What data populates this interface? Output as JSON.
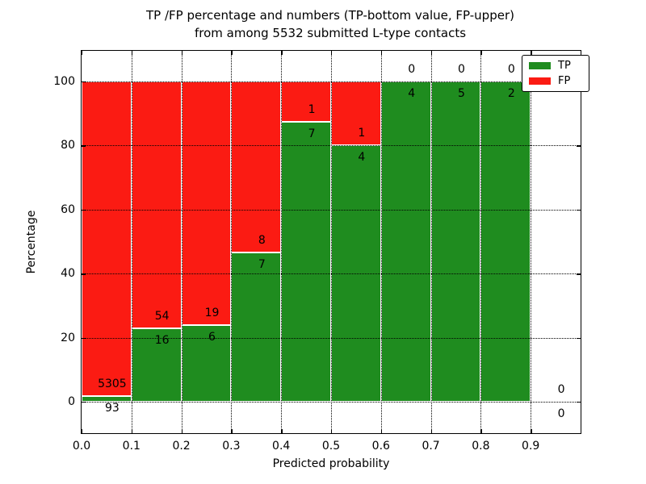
{
  "figure": {
    "title_line1": "TP /FP percentage and numbers (TP-bottom value, FP-upper)",
    "title_line2": "from among 5532 submitted L-type contacts"
  },
  "chart_data": {
    "type": "bar",
    "stacked": true,
    "normalized": "each bar scaled to 100%, stacked TP (bottom) + FP (top); counts shown as labels at segment boundary",
    "title": "TP /FP percentage and numbers (TP-bottom value, FP-upper) from among 5532 submitted L-type contacts",
    "xlabel": "Predicted probability",
    "ylabel": "Percentage",
    "xlim": [
      0.0,
      1.0
    ],
    "ylim": [
      -10,
      109
    ],
    "xticks": [
      "0.0",
      "0.1",
      "0.2",
      "0.3",
      "0.4",
      "0.5",
      "0.6",
      "0.7",
      "0.8",
      "0.9"
    ],
    "yticks": [
      "0",
      "20",
      "40",
      "60",
      "80",
      "100"
    ],
    "grid": "dotted",
    "legend": {
      "position": "upper right",
      "entries": [
        {
          "label": "TP",
          "color": "#1f8c1f"
        },
        {
          "label": "FP",
          "color": "#fb1b13"
        }
      ]
    },
    "bins": [
      {
        "x_start": 0.0,
        "x_end": 0.1,
        "tp": 93,
        "fp": 5305
      },
      {
        "x_start": 0.1,
        "x_end": 0.2,
        "tp": 16,
        "fp": 54
      },
      {
        "x_start": 0.2,
        "x_end": 0.3,
        "tp": 6,
        "fp": 19
      },
      {
        "x_start": 0.3,
        "x_end": 0.4,
        "tp": 7,
        "fp": 8
      },
      {
        "x_start": 0.4,
        "x_end": 0.5,
        "tp": 7,
        "fp": 1
      },
      {
        "x_start": 0.5,
        "x_end": 0.6,
        "tp": 4,
        "fp": 1
      },
      {
        "x_start": 0.6,
        "x_end": 0.7,
        "tp": 4,
        "fp": 0
      },
      {
        "x_start": 0.7,
        "x_end": 0.8,
        "tp": 5,
        "fp": 0
      },
      {
        "x_start": 0.8,
        "x_end": 0.9,
        "tp": 2,
        "fp": 0
      },
      {
        "x_start": 0.9,
        "x_end": 1.0,
        "tp": 0,
        "fp": 0
      }
    ],
    "colors": {
      "tp": "#1f8c1f",
      "fp": "#fb1b13",
      "grid": "#000000",
      "bar_edge": "#ffffff",
      "background": "#ffffff",
      "text": "#000000"
    }
  }
}
